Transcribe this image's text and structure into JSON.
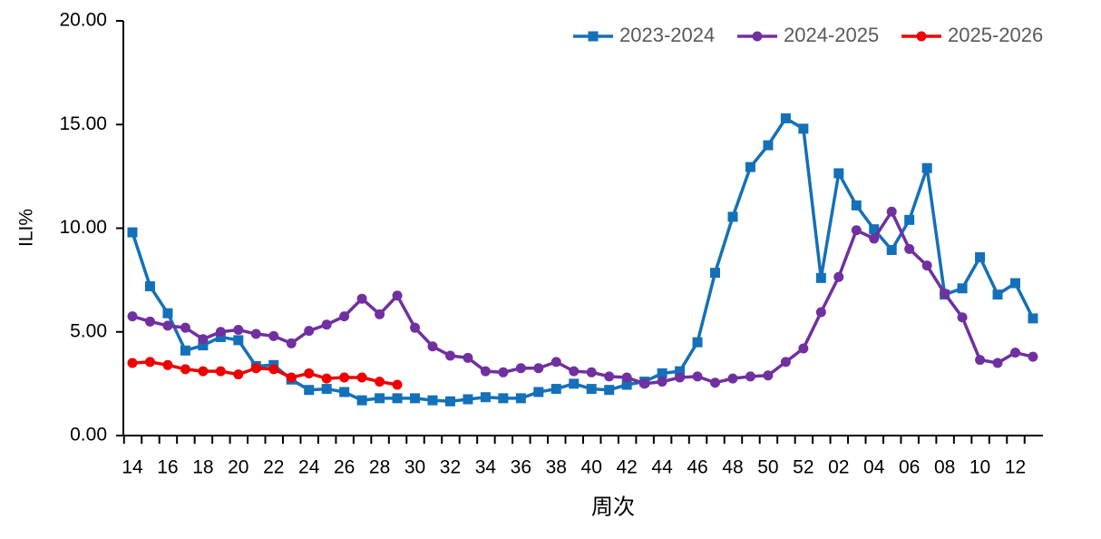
{
  "chart_data": {
    "type": "line",
    "xlabel": "周次",
    "ylabel": "ILI%",
    "categories": [
      "14",
      null,
      "16",
      null,
      "18",
      null,
      "20",
      null,
      "22",
      null,
      "24",
      null,
      "26",
      null,
      "28",
      null,
      "30",
      null,
      "32",
      null,
      "34",
      null,
      "36",
      null,
      "38",
      null,
      "40",
      null,
      "42",
      null,
      "44",
      null,
      "46",
      null,
      "48",
      null,
      "50",
      null,
      "52",
      null,
      "02",
      null,
      "04",
      null,
      "06",
      null,
      "08",
      null,
      "10",
      null,
      "12",
      null
    ],
    "series": [
      {
        "name": "2023-2024",
        "color": "#1470b8",
        "marker": "square",
        "values": [
          9.8,
          7.2,
          5.9,
          4.1,
          4.35,
          4.75,
          4.6,
          3.35,
          3.4,
          2.7,
          2.2,
          2.25,
          2.1,
          1.7,
          1.8,
          1.8,
          1.8,
          1.7,
          1.65,
          1.75,
          1.85,
          1.8,
          1.8,
          2.1,
          2.25,
          2.5,
          2.25,
          2.2,
          2.45,
          2.6,
          3.0,
          3.1,
          4.5,
          7.85,
          10.55,
          12.95,
          14.0,
          15.3,
          14.8,
          7.6,
          12.65,
          11.1,
          9.95,
          8.95,
          10.4,
          12.9,
          6.8,
          7.1,
          8.6,
          6.8,
          7.35,
          5.65
        ]
      },
      {
        "name": "2024-2025",
        "color": "#7030a0",
        "marker": "circle",
        "values": [
          5.75,
          5.5,
          5.3,
          5.2,
          4.65,
          5.0,
          5.1,
          4.9,
          4.8,
          4.45,
          5.05,
          5.35,
          5.75,
          6.6,
          5.85,
          6.75,
          5.2,
          4.3,
          3.85,
          3.75,
          3.1,
          3.05,
          3.25,
          3.25,
          3.55,
          3.1,
          3.05,
          2.85,
          2.8,
          2.5,
          2.6,
          2.8,
          2.85,
          2.55,
          2.75,
          2.85,
          2.9,
          3.55,
          4.2,
          5.95,
          7.65,
          9.9,
          9.5,
          10.8,
          9.0,
          8.2,
          6.85,
          5.7,
          3.65,
          3.5,
          4.0,
          3.8
        ]
      },
      {
        "name": "2025-2026",
        "color": "#ee0000",
        "marker": "circle",
        "values": [
          3.5,
          3.55,
          3.4,
          3.2,
          3.1,
          3.1,
          2.95,
          3.25,
          3.2,
          2.8,
          3.0,
          2.75,
          2.8,
          2.8,
          2.6,
          2.45,
          null,
          null,
          null,
          null,
          null,
          null,
          null,
          null,
          null,
          null,
          null,
          null,
          null,
          null,
          null,
          null,
          null,
          null,
          null,
          null,
          null,
          null,
          null,
          null,
          null,
          null,
          null,
          null,
          null,
          null,
          null,
          null,
          null,
          null,
          null,
          null
        ]
      }
    ],
    "ylim": [
      0,
      20
    ],
    "yticks": [
      {
        "value": 0,
        "label": "0.00"
      },
      {
        "value": 5,
        "label": "5.00"
      },
      {
        "value": 10,
        "label": "10.00"
      },
      {
        "value": 15,
        "label": "15.00"
      },
      {
        "value": 20,
        "label": "20.00"
      }
    ],
    "grid": false,
    "legend": "top-right"
  }
}
